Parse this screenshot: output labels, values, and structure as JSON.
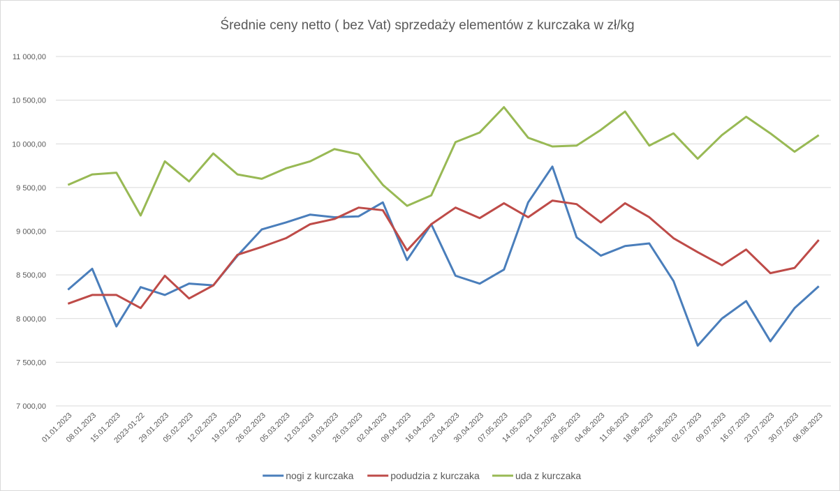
{
  "chart_data": {
    "type": "line",
    "title": "Średnie ceny netto ( bez Vat) sprzedaży elementów z kurczaka w zł/kg",
    "categories": [
      "01.01.2023",
      "08.01.2023",
      "15.01.2023",
      "2023-01-22",
      "29.01.2023",
      "05.02.2023",
      "12.02.2023",
      "19.02.2023",
      "26.02.2023",
      "05.03.2023",
      "12.03.2023",
      "19.03.2023",
      "26.03.2023",
      "02.04.2023",
      "09.04.2023",
      "16.04.2023",
      "23.04.2023",
      "30.04.2023",
      "07.05.2023",
      "14.05.2023",
      "21.05.2023",
      "28.05.2023",
      "04.06.2023",
      "11.06.2023",
      "18.06.2023",
      "25.06.2023",
      "02.07.2023",
      "09.07.2023",
      "16.07.2023",
      "23.07.2023",
      "30.07.2023",
      "06.08.2023"
    ],
    "series": [
      {
        "name": "nogi z kurczaka",
        "color": "#4a7ebb",
        "values": [
          8330,
          8570,
          7910,
          8360,
          8270,
          8400,
          8380,
          8720,
          9020,
          9100,
          9190,
          9160,
          9170,
          9330,
          8670,
          9080,
          8490,
          8400,
          8560,
          9330,
          9740,
          8930,
          8720,
          8830,
          8860,
          8430,
          7690,
          8000,
          8200,
          7740,
          8120,
          8370
        ]
      },
      {
        "name": "podudzia z kurczaka",
        "color": "#be4b48",
        "values": [
          8170,
          8270,
          8270,
          8120,
          8490,
          8230,
          8380,
          8730,
          8820,
          8920,
          9080,
          9140,
          9270,
          9240,
          8780,
          9080,
          9270,
          9150,
          9320,
          9160,
          9350,
          9310,
          9100,
          9320,
          9160,
          8920,
          8760,
          8610,
          8790,
          8520,
          8580,
          8900
        ]
      },
      {
        "name": "uda z kurczaka",
        "color": "#98b954",
        "values": [
          9530,
          9650,
          9670,
          9180,
          9800,
          9570,
          9890,
          9650,
          9600,
          9720,
          9800,
          9940,
          9880,
          9530,
          9290,
          9410,
          10020,
          10130,
          10420,
          10070,
          9970,
          9980,
          10160,
          10370,
          9980,
          10120,
          9830,
          10100,
          10310,
          10120,
          9910,
          10100
        ]
      }
    ],
    "ylim": [
      7000,
      11000
    ],
    "yticks": [
      {
        "value": 7000,
        "label": "7 000,00"
      },
      {
        "value": 7500,
        "label": "7 500,00"
      },
      {
        "value": 8000,
        "label": "8 000,00"
      },
      {
        "value": 8500,
        "label": "8 500,00"
      },
      {
        "value": 9000,
        "label": "9 000,00"
      },
      {
        "value": 9500,
        "label": "9 500,00"
      },
      {
        "value": 10000,
        "label": "10 000,00"
      },
      {
        "value": 10500,
        "label": "10 500,00"
      },
      {
        "value": 11000,
        "label": "11 000,00"
      }
    ],
    "grid": true,
    "legend": "bottom"
  }
}
